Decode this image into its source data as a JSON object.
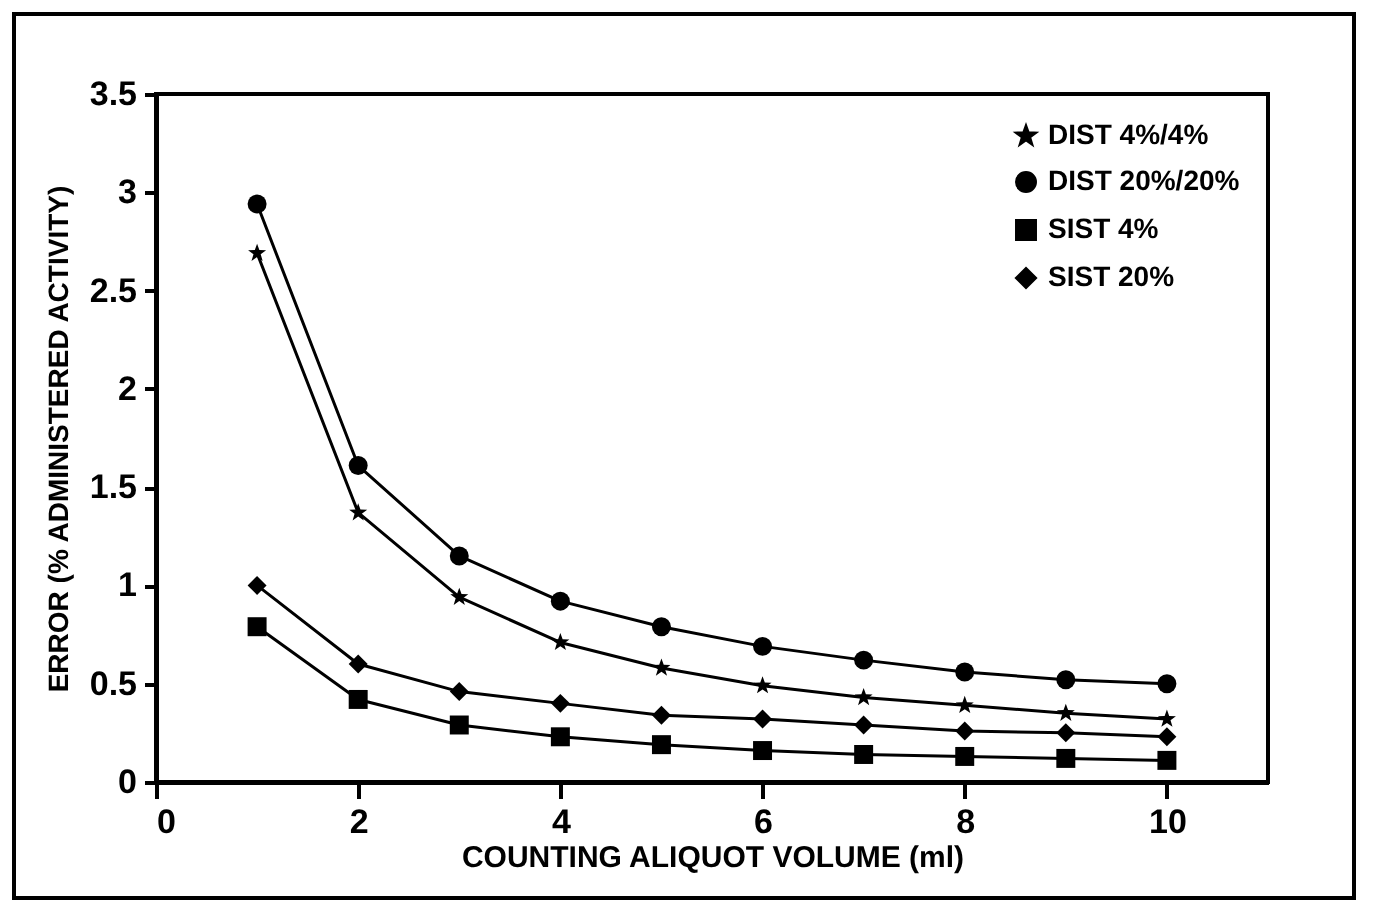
{
  "chart_data": {
    "type": "line",
    "xlabel": "COUNTING ALIQUOT VOLUME (ml)",
    "ylabel": "ERROR (% ADMINISTERED ACTIVITY)",
    "x": [
      1,
      2,
      3,
      4,
      5,
      6,
      7,
      8,
      9,
      10
    ],
    "series": [
      {
        "name": "DIST 4%/4%",
        "color": "#000000",
        "marker": "star",
        "values": [
          2.69,
          1.37,
          0.94,
          0.71,
          0.58,
          0.49,
          0.43,
          0.39,
          0.35,
          0.32
        ]
      },
      {
        "name": "DIST 20%/20%",
        "color": "#000000",
        "marker": "circle",
        "values": [
          2.94,
          1.61,
          1.15,
          0.92,
          0.79,
          0.69,
          0.62,
          0.56,
          0.52,
          0.5
        ]
      },
      {
        "name": "SIST 4%",
        "color": "#000000",
        "marker": "square",
        "values": [
          0.79,
          0.42,
          0.29,
          0.23,
          0.19,
          0.16,
          0.14,
          0.13,
          0.12,
          0.11
        ]
      },
      {
        "name": "SIST 20%",
        "color": "#000000",
        "marker": "diamond",
        "values": [
          1.0,
          0.6,
          0.46,
          0.4,
          0.34,
          0.32,
          0.29,
          0.26,
          0.25,
          0.23
        ]
      }
    ],
    "xlim": [
      0,
      11
    ],
    "xticks": [
      0,
      2,
      4,
      6,
      8,
      10
    ],
    "ylim": [
      0,
      3.5
    ],
    "yticks": [
      0,
      0.5,
      1,
      1.5,
      2,
      2.5,
      3,
      3.5
    ],
    "grid": false,
    "legend": "top right",
    "line_style": "solid"
  }
}
